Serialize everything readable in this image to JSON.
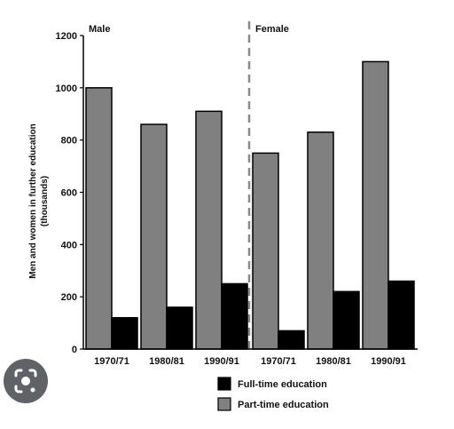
{
  "chart_data": {
    "type": "bar",
    "panels": [
      "Male",
      "Female"
    ],
    "categories": [
      "1970/71",
      "1980/81",
      "1990/91",
      "1970/71",
      "1980/81",
      "1990/91"
    ],
    "ylabel": "Men and women in further education (thousands)",
    "ylabel_lines": [
      "Men and women in further education",
      "(thousands)"
    ],
    "ylim": [
      0,
      1200
    ],
    "yticks": [
      0,
      200,
      400,
      600,
      800,
      1000,
      1200
    ],
    "grid": false,
    "legend_position": "bottom-right",
    "series": [
      {
        "name": "Full-time education",
        "color": "#000000",
        "values": [
          120,
          160,
          250,
          70,
          220,
          260
        ]
      },
      {
        "name": "Part-time education",
        "color": "#808080",
        "values": [
          1000,
          860,
          910,
          750,
          830,
          1100
        ]
      }
    ]
  },
  "lens_button": {
    "icon": "camera-lens-icon"
  }
}
